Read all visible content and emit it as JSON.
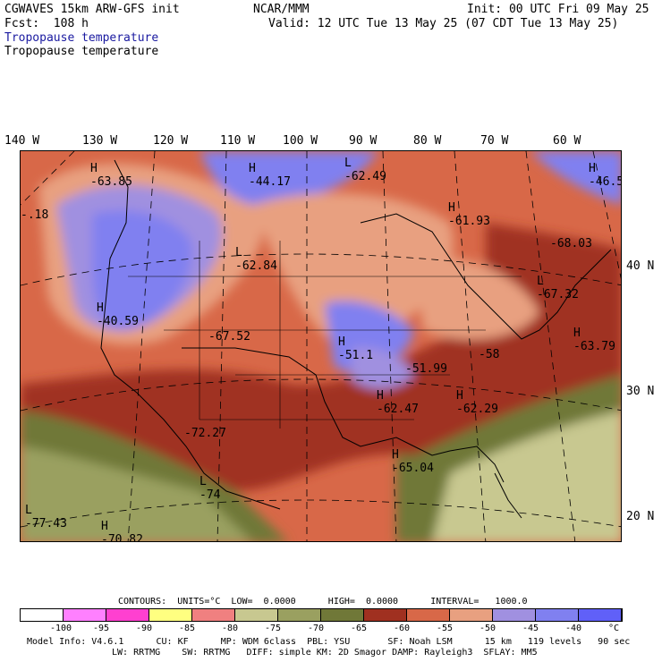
{
  "header": {
    "model": "CGWAVES 15km ARW-GFS init",
    "org": "NCAR/MMM",
    "init": "Init: 00 UTC Fri 09 May 25",
    "fcst": "Fcst:  108 h",
    "valid": "Valid: 12 UTC Tue 13 May 25 (07 CDT Tue 13 May 25)",
    "field1": "Tropopause temperature",
    "field2": "Tropopause temperature"
  },
  "lon_labels": [
    "140 W",
    "130 W",
    "120 W",
    "110 W",
    "100 W",
    "90 W",
    "80 W",
    "70 W",
    "60 W"
  ],
  "lat_labels": [
    "40 N",
    "30 N",
    "20 N"
  ],
  "map_labels": [
    {
      "hl": "H",
      "val": "-63.85"
    },
    {
      "hl": "H",
      "val": "-44.17"
    },
    {
      "hl": "L",
      "val": "-62.49"
    },
    {
      "hl": "H",
      "val": "-61.93"
    },
    {
      "hl": "",
      "val": "-.18"
    },
    {
      "hl": "L",
      "val": "-62.84"
    },
    {
      "hl": "H",
      "val": "-40.59"
    },
    {
      "hl": "",
      "val": "-67.52"
    },
    {
      "hl": "H",
      "val": "-51.1"
    },
    {
      "hl": "",
      "val": "-51.99"
    },
    {
      "hl": "",
      "val": "-58"
    },
    {
      "hl": "H",
      "val": "-62.47"
    },
    {
      "hl": "H",
      "val": "-62.29"
    },
    {
      "hl": "",
      "val": "-72.27"
    },
    {
      "hl": "H",
      "val": "-65.04"
    },
    {
      "hl": "L",
      "val": "-74"
    },
    {
      "hl": "L",
      "val": "-77.43"
    },
    {
      "hl": "H",
      "val": "-70.82"
    },
    {
      "hl": "",
      "val": "-68.03"
    },
    {
      "hl": "L",
      "val": "-67.32"
    },
    {
      "hl": "H",
      "val": "-63.79"
    },
    {
      "hl": "H",
      "val": "-46.5"
    }
  ],
  "contour_info": "CONTOURS:  UNITS=°C  LOW=  0.0000      HIGH=  0.0000      INTERVAL=   1000.0",
  "colorbar": {
    "colors": [
      "#ffffff",
      "#ff80ff",
      "#ff40d0",
      "#ffff80",
      "#f08080",
      "#c8c890",
      "#9aa060",
      "#707838",
      "#a03020",
      "#d86848",
      "#e8a080",
      "#a090e0",
      "#8080f0",
      "#6060f8"
    ],
    "labels": [
      "-100",
      "-95",
      "-90",
      "-85",
      "-80",
      "-75",
      "-70",
      "-65",
      "-60",
      "-55",
      "-50",
      "-45",
      "-40",
      "°C"
    ]
  },
  "footer1": "Model Info: V4.6.1      CU: KF      MP: WDM 6class  PBL: YSU       SF: Noah LSM      15 km   119 levels   90 sec",
  "footer2": "LW: RRTMG    SW: RRTMG   DIFF: simple KM: 2D Smagor DAMP: Rayleigh3  SFLAY: MM5"
}
